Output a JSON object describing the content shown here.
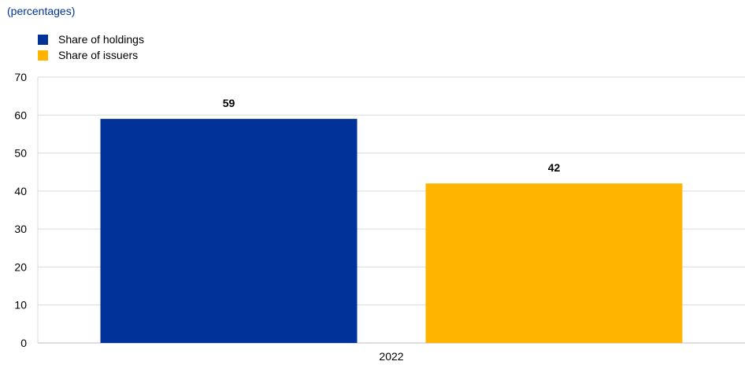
{
  "subtitle": "(percentages)",
  "legend": [
    {
      "label": "Share of holdings",
      "color": "#003299"
    },
    {
      "label": "Share of issuers",
      "color": "#FFB400"
    }
  ],
  "chart_data": {
    "type": "bar",
    "categories": [
      "2022"
    ],
    "series": [
      {
        "name": "Share of holdings",
        "values": [
          59
        ],
        "color": "#003299"
      },
      {
        "name": "Share of issuers",
        "values": [
          42
        ],
        "color": "#FFB400"
      }
    ],
    "ylim": [
      0,
      70
    ],
    "yticks": [
      0,
      10,
      20,
      30,
      40,
      50,
      60,
      70
    ],
    "grid": true,
    "legend_position": "top-left",
    "data_labels": true
  }
}
